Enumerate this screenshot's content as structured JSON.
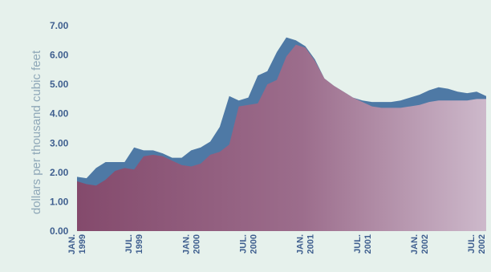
{
  "chart_data": {
    "type": "area",
    "title": "",
    "ylabel": "dollars per thousand cubic feet",
    "xlabel": "",
    "ylim": [
      0,
      7
    ],
    "yticks": [
      0,
      1,
      2,
      3,
      4,
      5,
      6,
      7
    ],
    "ytick_labels": [
      "0.00",
      "1.00",
      "2.00",
      "3.00",
      "4.00",
      "5.00",
      "6.00",
      "7.00"
    ],
    "grid": false,
    "legend": "none",
    "x": [
      "1999-01",
      "1999-02",
      "1999-03",
      "1999-04",
      "1999-05",
      "1999-06",
      "1999-07",
      "1999-08",
      "1999-09",
      "1999-10",
      "1999-11",
      "1999-12",
      "2000-01",
      "2000-02",
      "2000-03",
      "2000-04",
      "2000-05",
      "2000-06",
      "2000-07",
      "2000-08",
      "2000-09",
      "2000-10",
      "2000-11",
      "2000-12",
      "2001-01",
      "2001-02",
      "2001-03",
      "2001-04",
      "2001-05",
      "2001-06",
      "2001-07",
      "2001-08",
      "2001-09",
      "2001-10",
      "2001-11",
      "2001-12",
      "2002-01",
      "2002-02",
      "2002-03",
      "2002-04",
      "2002-05",
      "2002-06",
      "2002-07",
      "2002-08"
    ],
    "xticks": [
      {
        "x": "1999-01",
        "line1": "JAN.",
        "line2": "1999"
      },
      {
        "x": "1999-07",
        "line1": "JUL.",
        "line2": "1999"
      },
      {
        "x": "2000-01",
        "line1": "JAN.",
        "line2": "2000"
      },
      {
        "x": "2000-07",
        "line1": "JUL.",
        "line2": "2000"
      },
      {
        "x": "2001-01",
        "line1": "JAN.",
        "line2": "2001"
      },
      {
        "x": "2001-07",
        "line1": "JUL.",
        "line2": "2001"
      },
      {
        "x": "2002-01",
        "line1": "JAN.",
        "line2": "2002"
      },
      {
        "x": "2002-07",
        "line1": "JUL.",
        "line2": "2002"
      }
    ],
    "series": [
      {
        "values": [
          1.85,
          1.8,
          2.15,
          2.35,
          2.35,
          2.35,
          2.85,
          2.75,
          2.75,
          2.65,
          2.5,
          2.5,
          2.75,
          2.85,
          3.05,
          3.55,
          4.6,
          4.45,
          4.55,
          5.3,
          5.45,
          6.1,
          6.6,
          6.5,
          6.3,
          5.85,
          5.2,
          4.95,
          4.75,
          4.55,
          4.45,
          4.4,
          4.4,
          4.4,
          4.45,
          4.55,
          4.65,
          4.8,
          4.9,
          4.85,
          4.75,
          4.7,
          4.75,
          4.6
        ],
        "color": "#4e79a5"
      },
      {
        "values": [
          1.7,
          1.6,
          1.55,
          1.75,
          2.05,
          2.15,
          2.1,
          2.55,
          2.6,
          2.55,
          2.4,
          2.25,
          2.2,
          2.3,
          2.6,
          2.7,
          2.95,
          4.25,
          4.3,
          4.35,
          5.0,
          5.15,
          5.95,
          6.35,
          6.25,
          5.8,
          5.2,
          4.95,
          4.75,
          4.55,
          4.4,
          4.25,
          4.2,
          4.2,
          4.2,
          4.25,
          4.3,
          4.4,
          4.45,
          4.45,
          4.45,
          4.45,
          4.5,
          4.5
        ],
        "color": "#8a4c72"
      }
    ]
  }
}
